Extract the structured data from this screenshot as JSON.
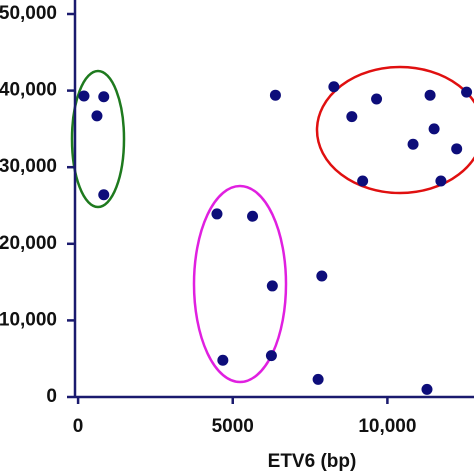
{
  "chart_data": {
    "type": "scatter",
    "x_label": "ETV6 (bp)",
    "xlim": [
      -100,
      12800
    ],
    "ylim": [
      0,
      50000
    ],
    "xticks": [
      0,
      5000,
      {
        "value": 10000,
        "label": "10,000"
      }
    ],
    "yticks": [
      0,
      {
        "value": 10000,
        "label": "10,000"
      },
      {
        "value": 20000,
        "label": "20,000"
      },
      {
        "value": 30000,
        "label": "30,000"
      },
      {
        "value": 40000,
        "label": "40,000"
      },
      {
        "value": 50000,
        "label": "50,000"
      }
    ],
    "color": "#0d0d7a",
    "x": [
      190,
      830,
      610,
      830,
      4490,
      5640,
      6380,
      4680,
      6280,
      6250,
      7880,
      7760,
      8270,
      8850,
      9200,
      9650,
      10830,
      11380,
      11510,
      11280,
      12240,
      11730,
      12560
    ],
    "values": [
      39300,
      39200,
      36700,
      26400,
      23900,
      23600,
      39400,
      4800,
      14500,
      5400,
      15800,
      2300,
      40500,
      36600,
      28200,
      38900,
      33000,
      39400,
      35000,
      1000,
      32400,
      28200,
      39800
    ]
  }
}
